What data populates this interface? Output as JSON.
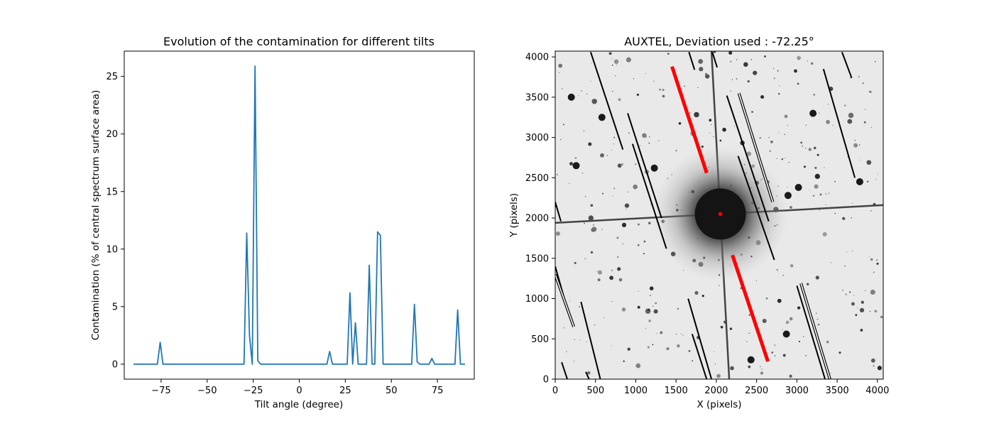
{
  "chart_data": [
    {
      "type": "line",
      "title": "Evolution of the contamination for different tilts",
      "xlabel": "Tilt angle (degree)",
      "ylabel": "Contamination (% of central spectrum surface area)",
      "xlim": [
        -95,
        95
      ],
      "ylim": [
        -1.3,
        27.2
      ],
      "xticks": [
        -75,
        -50,
        -25,
        0,
        25,
        50,
        75
      ],
      "yticks": [
        0,
        5,
        10,
        15,
        20,
        25
      ],
      "grid": false,
      "color": "#1f77b4",
      "series": [
        {
          "x": [
            -90,
            -77,
            -75.5,
            -74,
            -30,
            -28.5,
            -27,
            -25.5,
            -24,
            -22.5,
            -21,
            -19.5,
            15,
            16.5,
            18,
            26,
            27.5,
            29,
            30.5,
            32,
            33.5,
            36.5,
            38,
            39.5,
            41,
            42.5,
            44,
            45.5,
            47,
            48.5,
            61,
            62.5,
            64,
            65.5,
            70.5,
            72,
            73.5,
            75,
            84.5,
            86,
            87.5,
            89,
            90
          ],
          "y": [
            0,
            0,
            1.9,
            0,
            0,
            11.4,
            2.5,
            0,
            25.9,
            0.3,
            0,
            0,
            0,
            1.1,
            0,
            0,
            6.2,
            0,
            3.6,
            0,
            0,
            0,
            8.6,
            0,
            0,
            11.5,
            11.2,
            0,
            0,
            0,
            0,
            5.2,
            0.2,
            0,
            0,
            0.5,
            0,
            0,
            0,
            4.7,
            0,
            0,
            0
          ]
        }
      ]
    },
    {
      "type": "scatter",
      "title": "AUXTEL, Deviation used : -72.25°",
      "xlabel": "X (pixels)",
      "ylabel": "Y (pixels)",
      "xlim": [
        0,
        4072
      ],
      "ylim": [
        0,
        4072
      ],
      "xticks": [
        0,
        500,
        1000,
        1500,
        2000,
        2500,
        3000,
        3500,
        4000
      ],
      "yticks": [
        0,
        500,
        1000,
        1500,
        2000,
        2500,
        3000,
        3500,
        4000
      ],
      "grid": false,
      "background": "grayscale star field image (inverted)",
      "central_star": {
        "x": 2050,
        "y": 2050
      },
      "red_segments": [
        {
          "x": [
            1450,
            1880
          ],
          "y": [
            3880,
            2560
          ]
        },
        {
          "x": [
            2200,
            2640
          ],
          "y": [
            1540,
            220
          ]
        }
      ],
      "black_segments": [
        {
          "x": [
            440,
            840
          ],
          "y": [
            4060,
            2850
          ]
        },
        {
          "x": [
            900,
            1320
          ],
          "y": [
            3300,
            2000
          ]
        },
        {
          "x": [
            960,
            1380
          ],
          "y": [
            2920,
            1620
          ]
        },
        {
          "x": [
            1660,
            1730
          ],
          "y": [
            4060,
            3840
          ]
        },
        {
          "x": [
            1950,
            2010
          ],
          "y": [
            4060,
            3870
          ]
        },
        {
          "x": [
            2130,
            2650
          ],
          "y": [
            3520,
            1960
          ]
        },
        {
          "x": [
            2270,
            2720
          ],
          "y": [
            2770,
            1480
          ]
        },
        {
          "x": [
            3330,
            3720
          ],
          "y": [
            3850,
            2500
          ]
        },
        {
          "x": [
            3560,
            3680
          ],
          "y": [
            4060,
            3740
          ]
        },
        {
          "x": [
            0,
            70
          ],
          "y": [
            2200,
            1960
          ]
        },
        {
          "x": [
            0,
            130
          ],
          "y": [
            1400,
            940
          ]
        },
        {
          "x": [
            1650,
            1940
          ],
          "y": [
            1000,
            0
          ]
        },
        {
          "x": [
            1700,
            1880
          ],
          "y": [
            560,
            0
          ]
        },
        {
          "x": [
            3000,
            3350
          ],
          "y": [
            1160,
            0
          ]
        },
        {
          "x": [
            320,
            560
          ],
          "y": [
            960,
            0
          ]
        },
        {
          "x": [
            80,
            150
          ],
          "y": [
            210,
            0
          ]
        },
        {
          "x": [
            380,
            420
          ],
          "y": [
            90,
            0
          ]
        }
      ],
      "white_segments": [
        {
          "x": [
            2280,
            2700
          ],
          "y": [
            3550,
            2200
          ]
        },
        {
          "x": [
            3050,
            3410
          ],
          "y": [
            1190,
            0
          ]
        },
        {
          "x": [
            0,
            230
          ],
          "y": [
            1300,
            650
          ]
        }
      ]
    }
  ]
}
